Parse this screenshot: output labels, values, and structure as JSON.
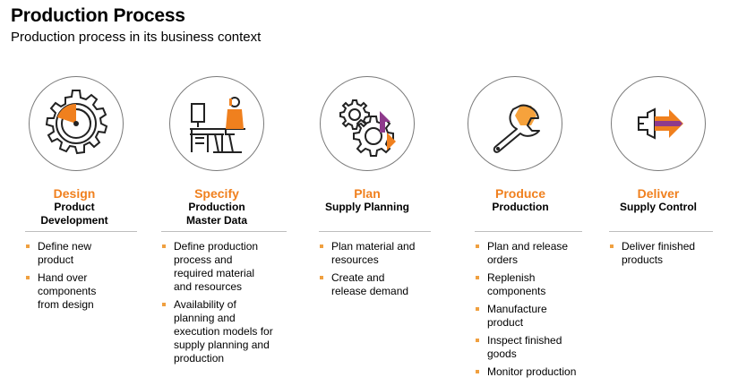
{
  "header": {
    "title": "Production Process",
    "subtitle": "Production process in its business context"
  },
  "colors": {
    "accent": "#f0801e",
    "accent_light": "#f6a23c",
    "accent_purple": "#8e3a8c",
    "line": "#222222",
    "rule": "#bdbdbd"
  },
  "stages": [
    {
      "icon": "design-gear-icon",
      "stage": "Design",
      "subtitle": "Product\nDevelopment",
      "bullets": [
        "Define new\nproduct",
        "Hand over\ncomponents\nfrom design"
      ]
    },
    {
      "icon": "specify-desk-worker-icon",
      "stage": "Specify",
      "subtitle": "Production\nMaster Data",
      "bullets": [
        "Define production\nprocess and\nrequired material\nand resources",
        "Availability of\nplanning and\nexecution models for\nsupply planning and\nproduction"
      ]
    },
    {
      "icon": "plan-gears-icon",
      "stage": "Plan",
      "subtitle": "Supply Planning",
      "bullets": [
        "Plan material and\nresources",
        "Create and\nrelease demand"
      ]
    },
    {
      "icon": "produce-wrench-icon",
      "stage": "Produce",
      "subtitle": "Production",
      "bullets": [
        "Plan and release\norders",
        "Replenish\ncomponents",
        "Manufacture\nproduct",
        "Inspect finished\ngoods",
        "Monitor production"
      ]
    },
    {
      "icon": "deliver-arrow-icon",
      "stage": "Deliver",
      "subtitle": "Supply Control",
      "bullets": [
        "Deliver finished\nproducts"
      ]
    }
  ]
}
